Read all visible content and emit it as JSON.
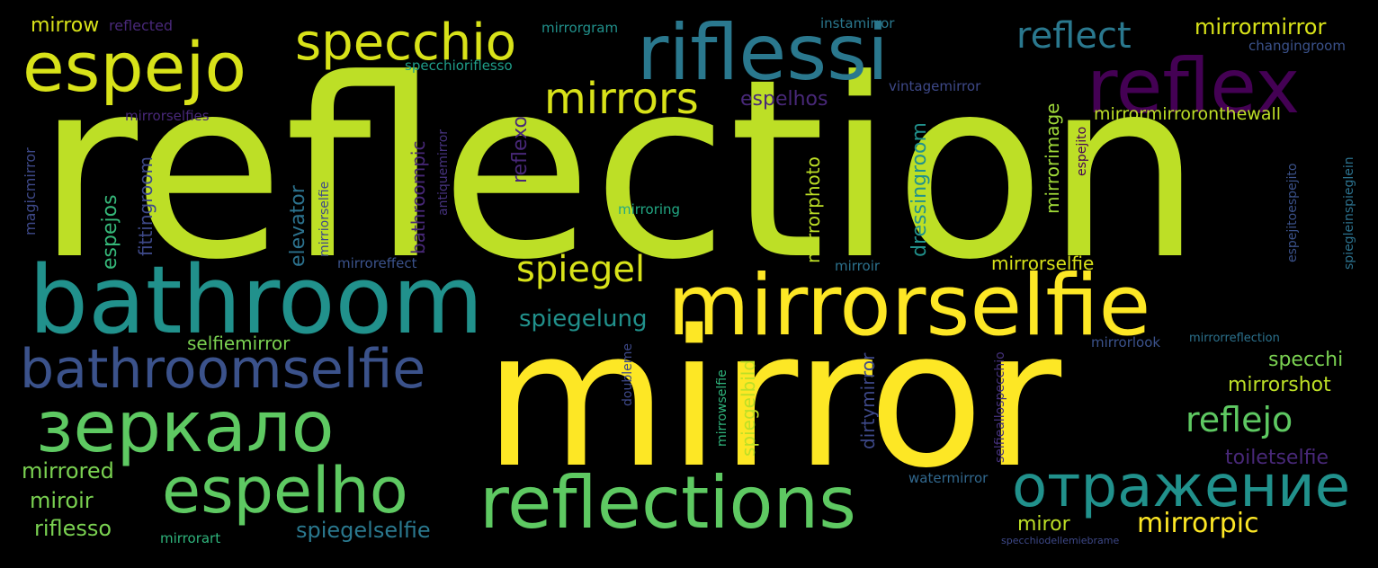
{
  "words": [
    {
      "text": "reflection",
      "color": "#bddf26"
    },
    {
      "text": "mirror",
      "color": "#fde725"
    },
    {
      "text": "mirrorselfie",
      "color": "#fde725"
    },
    {
      "text": "bathroom",
      "color": "#21918c"
    },
    {
      "text": "riflessi",
      "color": "#2a788e"
    },
    {
      "text": "reflex",
      "color": "#440154"
    },
    {
      "text": "espejo",
      "color": "#d8e219"
    },
    {
      "text": "specchio",
      "color": "#d8e219"
    },
    {
      "text": "bathroomselfie",
      "color": "#3b528b"
    },
    {
      "text": "зеркало",
      "color": "#5ec962"
    },
    {
      "text": "reflections",
      "color": "#5ec962"
    },
    {
      "text": "espelho",
      "color": "#5ec962"
    },
    {
      "text": "отражение",
      "color": "#21918c"
    },
    {
      "text": "mirrors",
      "color": "#d8e219"
    },
    {
      "text": "reflect",
      "color": "#2a788e"
    },
    {
      "text": "spiegel",
      "color": "#d8e219"
    },
    {
      "text": "reflejo",
      "color": "#5ec962"
    },
    {
      "text": "mirrorpic",
      "color": "#fde725"
    },
    {
      "text": "mirrormirror",
      "color": "#d8e219"
    },
    {
      "text": "mirrormirroronthewall",
      "color": "#bddf26"
    },
    {
      "text": "espelhos",
      "color": "#482878"
    },
    {
      "text": "spiegelung",
      "color": "#21918c"
    },
    {
      "text": "spiegelselfie",
      "color": "#2a788e"
    },
    {
      "text": "mirrored",
      "color": "#7ad151"
    },
    {
      "text": "miroir",
      "color": "#7ad151"
    },
    {
      "text": "riflesso",
      "color": "#7ad151"
    },
    {
      "text": "selfiemirror",
      "color": "#7ad151"
    },
    {
      "text": "mirrorselfie",
      "color": "#d8e219"
    },
    {
      "text": "specchi",
      "color": "#7ad151"
    },
    {
      "text": "mirrorshot",
      "color": "#bddf26"
    },
    {
      "text": "toiletselfie",
      "color": "#482878"
    },
    {
      "text": "miror",
      "color": "#bddf26"
    },
    {
      "text": "mirrow",
      "color": "#d8e219"
    },
    {
      "text": "reflected",
      "color": "#482878"
    },
    {
      "text": "mirrorgram",
      "color": "#21918c"
    },
    {
      "text": "instamirror",
      "color": "#2a788e"
    },
    {
      "text": "specchioriflesso",
      "color": "#1f9e89"
    },
    {
      "text": "changingroom",
      "color": "#3b528b"
    },
    {
      "text": "vintagemirror",
      "color": "#3e4989"
    },
    {
      "text": "mirrorselfies",
      "color": "#482878"
    },
    {
      "text": "mirroreffect",
      "color": "#3b528b"
    },
    {
      "text": "mirroring",
      "color": "#22a884"
    },
    {
      "text": "mirroir",
      "color": "#2c728e"
    },
    {
      "text": "mirrorlook",
      "color": "#3b528b"
    },
    {
      "text": "mirrorreflection",
      "color": "#2c728e"
    },
    {
      "text": "watermirror",
      "color": "#31688e"
    },
    {
      "text": "mirrorart",
      "color": "#2fb47c"
    },
    {
      "text": "specchiodellemiebrame",
      "color": "#3e4989"
    },
    {
      "text": "magicmirror",
      "color": "#3e4989"
    },
    {
      "text": "espejos",
      "color": "#35b779"
    },
    {
      "text": "fittingroom",
      "color": "#3e4989"
    },
    {
      "text": "elevator",
      "color": "#2c728e"
    },
    {
      "text": "mirriorselfie",
      "color": "#3e4989"
    },
    {
      "text": "antiquemirror",
      "color": "#46327e"
    },
    {
      "text": "bathroompic",
      "color": "#482878"
    },
    {
      "text": "reflexo",
      "color": "#482878"
    },
    {
      "text": "mirrorphoto",
      "color": "#bddf26"
    },
    {
      "text": "dressingroom",
      "color": "#21918c"
    },
    {
      "text": "mirrorimage",
      "color": "#a0da39"
    },
    {
      "text": "espejito",
      "color": "#440154"
    },
    {
      "text": "espejitoespejito",
      "color": "#3b528b"
    },
    {
      "text": "spiegleinspieglein",
      "color": "#2c728e"
    },
    {
      "text": "doubleme",
      "color": "#3e4989"
    },
    {
      "text": "mirrowselfie",
      "color": "#2fb47c"
    },
    {
      "text": "spiegelbild",
      "color": "#bddf26"
    },
    {
      "text": "dirtymirror",
      "color": "#3e4989"
    },
    {
      "text": "selfieallospecchio",
      "color": "#46327e"
    }
  ]
}
